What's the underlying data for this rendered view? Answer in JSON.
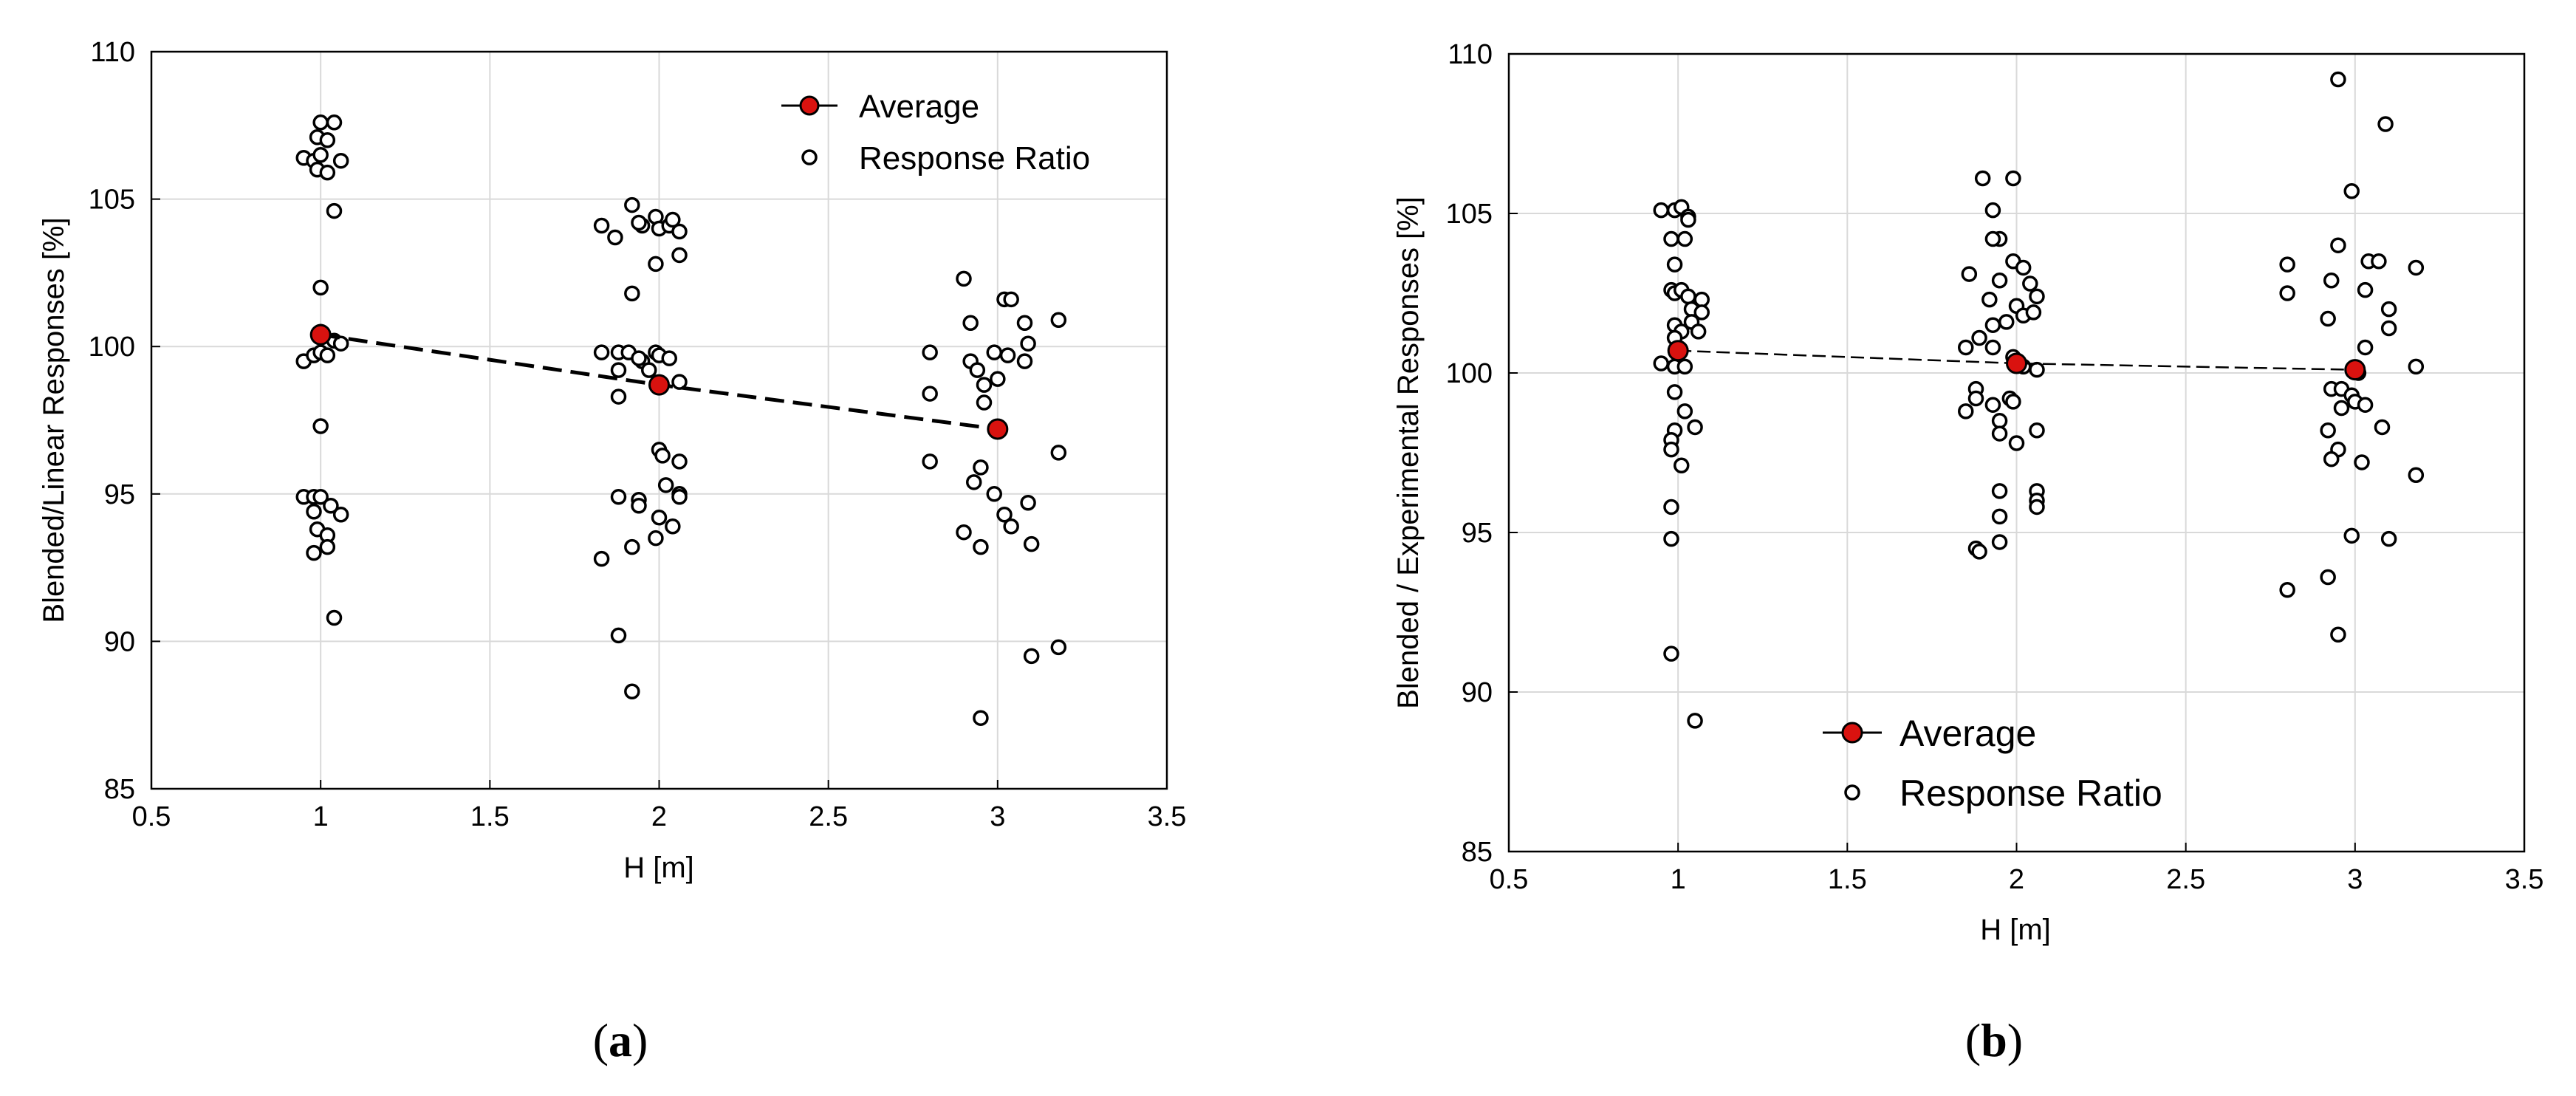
{
  "chart_data": [
    {
      "type": "scatter",
      "panel_label": "(a)",
      "panel_letter": "a",
      "xlabel": "H [m]",
      "ylabel": "Blended/Linear  Responses  [%]",
      "xlim": [
        0.5,
        3.5
      ],
      "ylim": [
        85,
        110
      ],
      "xticks": [
        "0.5",
        "1",
        "1.5",
        "2",
        "2.5",
        "3",
        "3.5"
      ],
      "yticks": [
        "85",
        "90",
        "95",
        "100",
        "105",
        "110"
      ],
      "grid": true,
      "legend_position": "top-right",
      "legend": [
        "Average",
        "Response Ratio"
      ],
      "series": [
        {
          "name": "Average",
          "style": "dashed-line-with-red-markers",
          "points": [
            [
              1.0,
              100.4
            ],
            [
              2.0,
              98.7
            ],
            [
              3.0,
              97.2
            ]
          ]
        },
        {
          "name": "Response Ratio",
          "style": "open-circles",
          "points": [
            [
              0.95,
              106.4
            ],
            [
              0.98,
              106.3
            ],
            [
              0.99,
              107.1
            ],
            [
              1.0,
              107.6
            ],
            [
              1.04,
              107.6
            ],
            [
              1.02,
              107.0
            ],
            [
              1.0,
              106.5
            ],
            [
              1.06,
              106.3
            ],
            [
              0.99,
              106.0
            ],
            [
              1.02,
              105.9
            ],
            [
              1.04,
              104.6
            ],
            [
              1.0,
              102.0
            ],
            [
              1.0,
              100.5
            ],
            [
              1.04,
              100.2
            ],
            [
              1.06,
              100.1
            ],
            [
              0.95,
              99.5
            ],
            [
              0.98,
              99.7
            ],
            [
              1.0,
              99.8
            ],
            [
              1.02,
              99.7
            ],
            [
              1.0,
              97.3
            ],
            [
              0.95,
              94.9
            ],
            [
              0.98,
              94.9
            ],
            [
              1.0,
              94.9
            ],
            [
              1.03,
              94.6
            ],
            [
              0.98,
              94.4
            ],
            [
              1.06,
              94.3
            ],
            [
              0.99,
              93.8
            ],
            [
              1.02,
              93.6
            ],
            [
              1.02,
              93.2
            ],
            [
              0.98,
              93.0
            ],
            [
              1.04,
              90.8
            ],
            [
              1.83,
              104.1
            ],
            [
              1.87,
              103.7
            ],
            [
              1.92,
              104.8
            ],
            [
              1.95,
              104.1
            ],
            [
              1.94,
              104.2
            ],
            [
              1.99,
              104.4
            ],
            [
              2.0,
              104.0
            ],
            [
              2.03,
              104.1
            ],
            [
              2.04,
              104.3
            ],
            [
              2.06,
              103.9
            ],
            [
              2.06,
              103.1
            ],
            [
              1.99,
              102.8
            ],
            [
              1.92,
              101.8
            ],
            [
              1.83,
              99.8
            ],
            [
              1.88,
              99.8
            ],
            [
              1.91,
              99.8
            ],
            [
              1.95,
              99.5
            ],
            [
              1.94,
              99.6
            ],
            [
              1.99,
              99.8
            ],
            [
              2.0,
              99.7
            ],
            [
              2.03,
              99.6
            ],
            [
              1.88,
              99.2
            ],
            [
              1.97,
              99.2
            ],
            [
              2.06,
              98.8
            ],
            [
              1.88,
              98.3
            ],
            [
              2.0,
              96.5
            ],
            [
              2.01,
              96.3
            ],
            [
              2.06,
              96.1
            ],
            [
              2.02,
              95.3
            ],
            [
              2.06,
              95.0
            ],
            [
              2.06,
              94.9
            ],
            [
              1.88,
              94.9
            ],
            [
              1.94,
              94.8
            ],
            [
              1.94,
              94.6
            ],
            [
              2.0,
              94.2
            ],
            [
              2.04,
              93.9
            ],
            [
              1.99,
              93.5
            ],
            [
              1.92,
              93.2
            ],
            [
              1.83,
              92.8
            ],
            [
              1.88,
              90.2
            ],
            [
              1.92,
              88.3
            ],
            [
              2.9,
              102.3
            ],
            [
              3.02,
              101.6
            ],
            [
              3.04,
              101.6
            ],
            [
              2.92,
              100.8
            ],
            [
              3.08,
              100.8
            ],
            [
              3.18,
              100.9
            ],
            [
              3.09,
              100.1
            ],
            [
              2.99,
              99.8
            ],
            [
              2.8,
              99.8
            ],
            [
              2.92,
              99.5
            ],
            [
              3.03,
              99.7
            ],
            [
              3.08,
              99.5
            ],
            [
              2.94,
              99.2
            ],
            [
              2.96,
              98.7
            ],
            [
              3.0,
              98.9
            ],
            [
              2.8,
              98.4
            ],
            [
              2.96,
              98.1
            ],
            [
              2.8,
              96.1
            ],
            [
              3.18,
              96.4
            ],
            [
              2.95,
              95.9
            ],
            [
              2.93,
              95.4
            ],
            [
              2.99,
              95.0
            ],
            [
              3.09,
              94.7
            ],
            [
              3.02,
              94.3
            ],
            [
              3.04,
              93.9
            ],
            [
              2.9,
              93.7
            ],
            [
              2.95,
              93.2
            ],
            [
              3.1,
              93.3
            ],
            [
              3.18,
              89.8
            ],
            [
              3.1,
              89.5
            ],
            [
              2.95,
              87.4
            ]
          ]
        }
      ]
    },
    {
      "type": "scatter",
      "panel_label": "(b)",
      "panel_letter": "b",
      "xlabel": "H [m]",
      "ylabel": "Blended / Experimental  Responses  [%]",
      "xlim": [
        0.5,
        3.5
      ],
      "ylim": [
        85,
        110
      ],
      "xticks": [
        "0.5",
        "1",
        "1.5",
        "2",
        "2.5",
        "3",
        "3.5"
      ],
      "yticks": [
        "85",
        "90",
        "95",
        "100",
        "105",
        "110"
      ],
      "grid": true,
      "legend_position": "bottom-center",
      "legend": [
        "Average",
        "Response Ratio"
      ],
      "series": [
        {
          "name": "Average",
          "style": "dashed-line-with-red-markers",
          "points": [
            [
              1.0,
              100.7
            ],
            [
              2.0,
              100.3
            ],
            [
              3.0,
              100.1
            ]
          ]
        },
        {
          "name": "Response Ratio",
          "style": "open-circles",
          "points": [
            [
              0.95,
              105.1
            ],
            [
              0.99,
              105.1
            ],
            [
              1.01,
              105.2
            ],
            [
              1.03,
              104.9
            ],
            [
              1.03,
              104.8
            ],
            [
              0.98,
              104.2
            ],
            [
              1.02,
              104.2
            ],
            [
              0.99,
              103.4
            ],
            [
              0.98,
              102.6
            ],
            [
              0.99,
              102.5
            ],
            [
              1.01,
              102.6
            ],
            [
              1.03,
              102.4
            ],
            [
              1.04,
              102.0
            ],
            [
              1.07,
              102.3
            ],
            [
              1.07,
              101.9
            ],
            [
              0.99,
              101.5
            ],
            [
              1.01,
              101.3
            ],
            [
              1.04,
              101.6
            ],
            [
              1.06,
              101.3
            ],
            [
              0.99,
              101.1
            ],
            [
              0.95,
              100.3
            ],
            [
              0.99,
              100.2
            ],
            [
              1.02,
              100.2
            ],
            [
              0.99,
              99.4
            ],
            [
              1.02,
              98.8
            ],
            [
              0.99,
              98.2
            ],
            [
              1.05,
              98.3
            ],
            [
              0.98,
              97.9
            ],
            [
              0.98,
              97.6
            ],
            [
              1.01,
              97.1
            ],
            [
              0.98,
              95.8
            ],
            [
              0.98,
              94.8
            ],
            [
              0.98,
              91.2
            ],
            [
              1.05,
              89.1
            ],
            [
              1.9,
              106.1
            ],
            [
              1.99,
              106.1
            ],
            [
              1.93,
              105.1
            ],
            [
              1.95,
              104.2
            ],
            [
              1.93,
              104.2
            ],
            [
              1.99,
              103.5
            ],
            [
              2.02,
              103.3
            ],
            [
              1.86,
              103.1
            ],
            [
              1.95,
              102.9
            ],
            [
              2.04,
              102.8
            ],
            [
              2.06,
              102.4
            ],
            [
              1.92,
              102.3
            ],
            [
              2.0,
              102.1
            ],
            [
              2.02,
              101.8
            ],
            [
              2.05,
              101.9
            ],
            [
              1.97,
              101.6
            ],
            [
              1.93,
              101.5
            ],
            [
              1.89,
              101.1
            ],
            [
              1.85,
              100.8
            ],
            [
              1.93,
              100.8
            ],
            [
              1.99,
              100.5
            ],
            [
              2.02,
              100.2
            ],
            [
              2.06,
              100.1
            ],
            [
              1.88,
              99.5
            ],
            [
              1.88,
              99.2
            ],
            [
              1.98,
              99.2
            ],
            [
              1.99,
              99.1
            ],
            [
              1.93,
              99.0
            ],
            [
              1.85,
              98.8
            ],
            [
              1.95,
              98.5
            ],
            [
              1.95,
              98.1
            ],
            [
              2.06,
              98.2
            ],
            [
              2.0,
              97.8
            ],
            [
              1.95,
              96.3
            ],
            [
              2.06,
              96.3
            ],
            [
              2.06,
              96.0
            ],
            [
              2.06,
              95.8
            ],
            [
              1.95,
              95.5
            ],
            [
              1.95,
              94.7
            ],
            [
              1.88,
              94.5
            ],
            [
              1.89,
              94.4
            ],
            [
              2.95,
              109.2
            ],
            [
              3.09,
              107.8
            ],
            [
              2.99,
              105.7
            ],
            [
              2.95,
              104.0
            ],
            [
              3.04,
              103.5
            ],
            [
              3.07,
              103.5
            ],
            [
              2.8,
              103.4
            ],
            [
              3.18,
              103.3
            ],
            [
              2.93,
              102.9
            ],
            [
              3.03,
              102.6
            ],
            [
              2.8,
              102.5
            ],
            [
              3.1,
              102.0
            ],
            [
              2.92,
              101.7
            ],
            [
              3.1,
              101.4
            ],
            [
              3.03,
              100.8
            ],
            [
              3.18,
              100.2
            ],
            [
              3.01,
              100.0
            ],
            [
              2.93,
              99.5
            ],
            [
              2.96,
              99.5
            ],
            [
              2.99,
              99.3
            ],
            [
              3.0,
              99.1
            ],
            [
              3.03,
              99.0
            ],
            [
              2.96,
              98.9
            ],
            [
              2.92,
              98.2
            ],
            [
              3.08,
              98.3
            ],
            [
              2.95,
              97.6
            ],
            [
              2.93,
              97.3
            ],
            [
              3.02,
              97.2
            ],
            [
              3.18,
              96.8
            ],
            [
              2.99,
              94.9
            ],
            [
              3.1,
              94.8
            ],
            [
              2.92,
              93.6
            ],
            [
              2.8,
              93.2
            ],
            [
              2.95,
              91.8
            ]
          ]
        }
      ]
    }
  ]
}
